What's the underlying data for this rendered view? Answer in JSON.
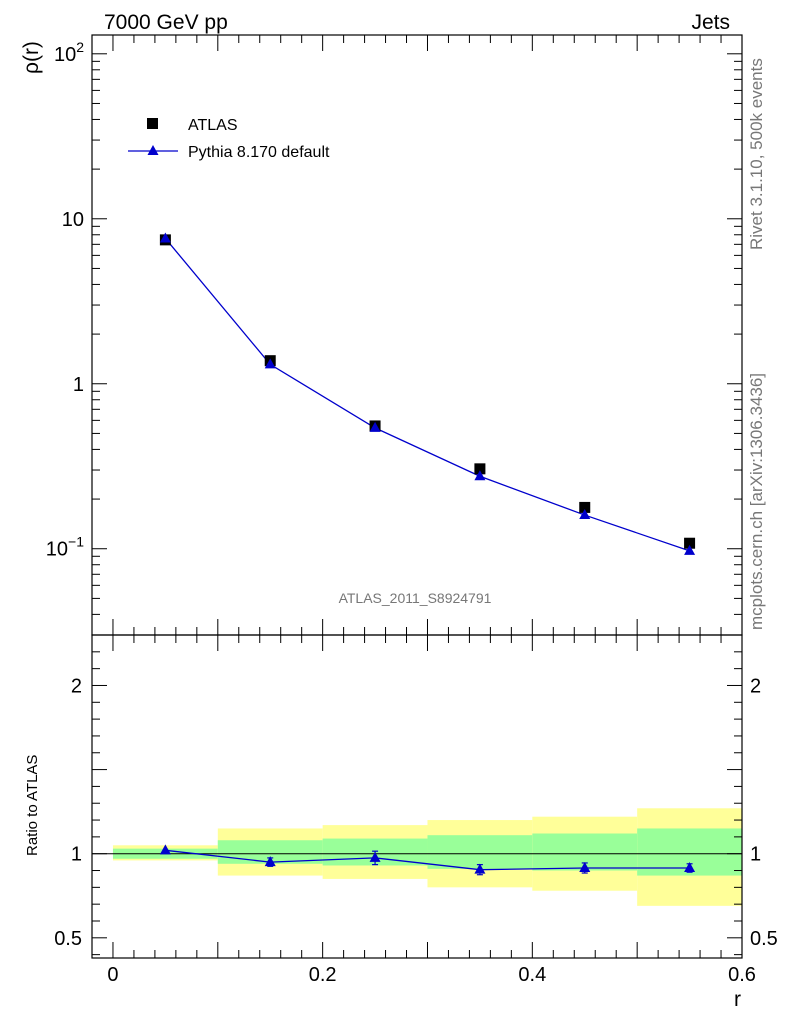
{
  "header": {
    "left": "7000 GeV pp",
    "right": "Jets"
  },
  "side": {
    "top": "Rivet 3.1.10,  500k events",
    "bottom": "mcplots.cern.ch [arXiv:1306.3436]"
  },
  "analysis_id": "ATLAS_2011_S8924791",
  "colors": {
    "data": "#000000",
    "mc": "#0000cc",
    "band_inner": "#99ff99",
    "band_outer": "#ffff99"
  },
  "chart_data": [
    {
      "type": "scatter",
      "ylabel": "ρ(r)",
      "yscale": "log",
      "ylim": [
        0.03,
        130
      ],
      "xlim": [
        -0.02,
        0.6
      ],
      "yticklabels": [
        {
          "value": 0.1,
          "base": "10",
          "exp": "−1"
        },
        {
          "value": 1,
          "base": "1",
          "exp": ""
        },
        {
          "value": 10,
          "base": "10",
          "exp": ""
        },
        {
          "value": 100,
          "base": "10",
          "exp": "2"
        }
      ],
      "legend": [
        "ATLAS",
        "Pythia 8.170 default"
      ],
      "legend_position": "top-left",
      "series": [
        {
          "name": "ATLAS",
          "x": [
            0.05,
            0.15,
            0.25,
            0.35,
            0.45,
            0.55
          ],
          "y": [
            7.45,
            1.38,
            0.555,
            0.305,
            0.178,
            0.108
          ]
        },
        {
          "name": "Pythia 8.170 default",
          "x": [
            0.05,
            0.15,
            0.25,
            0.35,
            0.45,
            0.55
          ],
          "y": [
            7.6,
            1.31,
            0.54,
            0.275,
            0.16,
            0.097
          ]
        }
      ]
    },
    {
      "type": "line",
      "xlabel": "r",
      "ylabel": "Ratio to ATLAS",
      "xlim": [
        -0.02,
        0.6
      ],
      "ylim": [
        0.38,
        2.3
      ],
      "xticklabels": [
        "0",
        "0.2",
        "0.4",
        "0.6"
      ],
      "xticks": [
        0,
        0.2,
        0.4,
        0.6
      ],
      "yticklabels": [
        "0.5",
        "1",
        "2"
      ],
      "yticks": [
        0.5,
        1,
        2
      ],
      "bins": [
        [
          0.0,
          0.1
        ],
        [
          0.1,
          0.2
        ],
        [
          0.2,
          0.3
        ],
        [
          0.3,
          0.4
        ],
        [
          0.4,
          0.5
        ],
        [
          0.5,
          0.6
        ]
      ],
      "band_inner": [
        [
          0.97,
          1.03
        ],
        [
          0.94,
          1.08
        ],
        [
          0.93,
          1.09
        ],
        [
          0.91,
          1.11
        ],
        [
          0.9,
          1.12
        ],
        [
          0.87,
          1.15
        ]
      ],
      "band_outer": [
        [
          0.96,
          1.05
        ],
        [
          0.87,
          1.15
        ],
        [
          0.85,
          1.17
        ],
        [
          0.8,
          1.2
        ],
        [
          0.78,
          1.22
        ],
        [
          0.69,
          1.27
        ]
      ],
      "series": [
        {
          "name": "Pythia 8.170 default",
          "x": [
            0.05,
            0.15,
            0.25,
            0.35,
            0.45,
            0.55
          ],
          "y": [
            1.02,
            0.95,
            0.975,
            0.905,
            0.915,
            0.915
          ],
          "err": [
            0.01,
            0.025,
            0.04,
            0.03,
            0.03,
            0.025
          ]
        }
      ]
    }
  ]
}
